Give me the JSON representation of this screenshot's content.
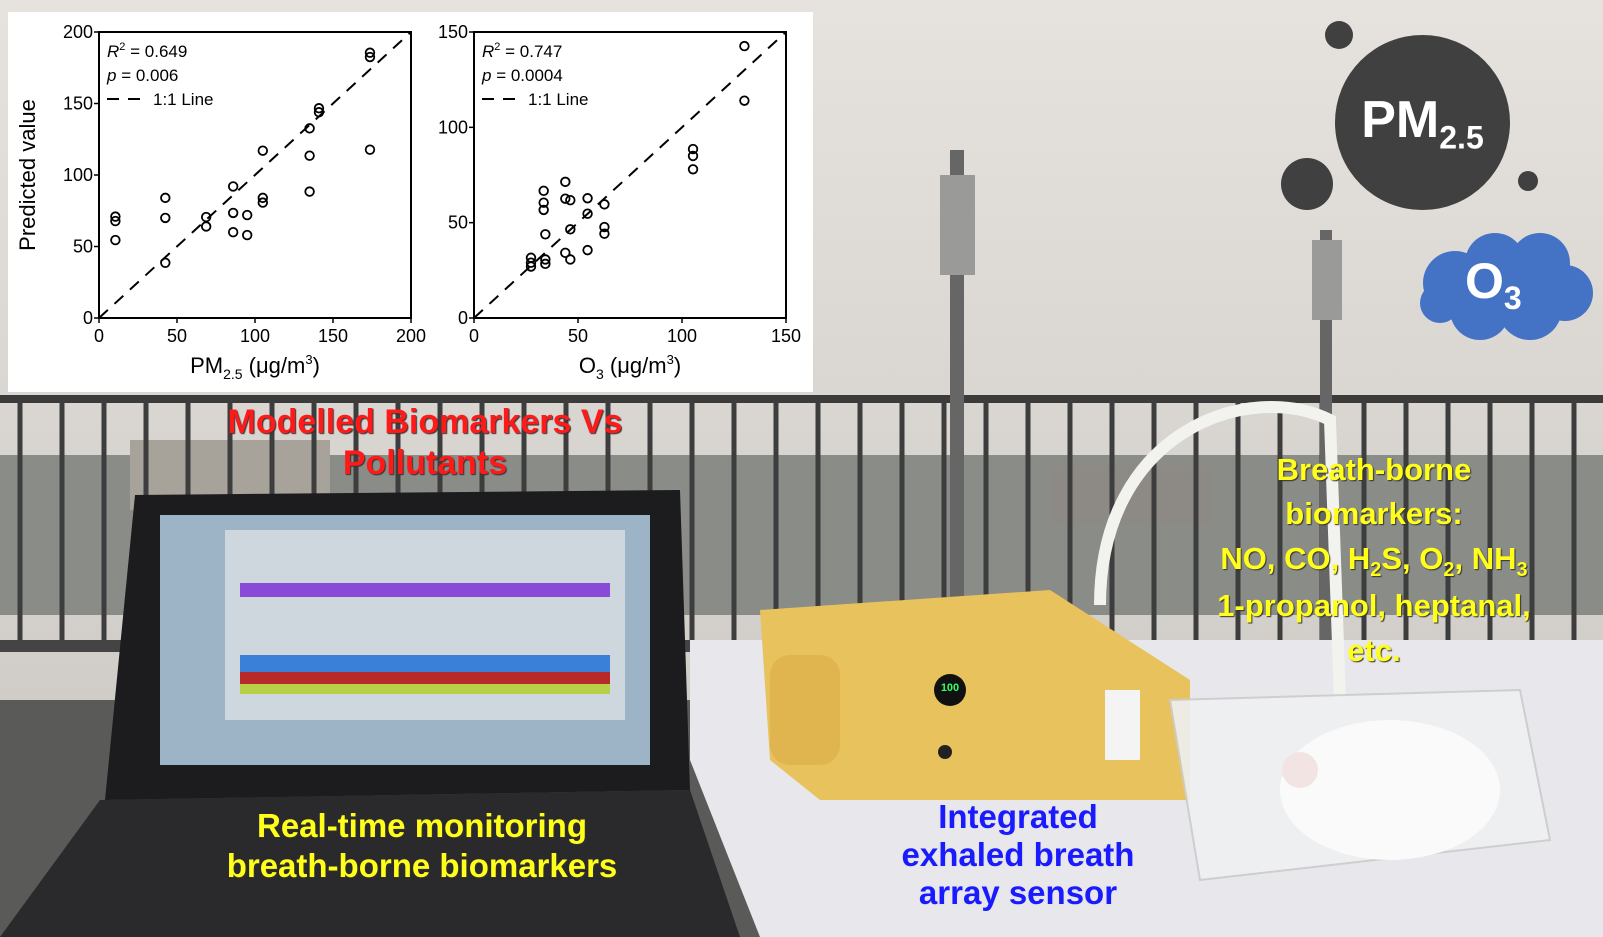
{
  "labels": {
    "modelled_line1": "Modelled Biomarkers Vs",
    "modelled_line2": "Pollutants",
    "breath_line1": "Breath-borne",
    "breath_line2": "biomarkers:",
    "breath_line3_parts": [
      "NO, CO, H",
      "2",
      "S, O",
      "2",
      ", NH",
      "3"
    ],
    "breath_line4": "1-propanol, heptanal,",
    "breath_line5": "etc.",
    "realtime_line1": "Real-time monitoring",
    "realtime_line2": "breath-borne biomarkers",
    "sensor_line1": "Integrated",
    "sensor_line2": "exhaled breath",
    "sensor_line3": "array sensor",
    "pm_main": "PM",
    "pm_sub": "2.5",
    "o3_main": "O",
    "o3_sub": "3",
    "device_display": "100"
  },
  "colors": {
    "modelled": "#ff1a1a",
    "breath": "#ffff1a",
    "sensor": "#1a1aff",
    "pm_bubble": "#404040",
    "o3_cloud": "#4472c4"
  },
  "chart_data": [
    {
      "type": "scatter",
      "ylabel": "Predicted value",
      "xlabel_main": "PM",
      "xlabel_sub": "2.5",
      "xlabel_unit": " (μg/m",
      "xlabel_sup": "3",
      "xlabel_end": ")",
      "xlim": [
        0,
        200
      ],
      "ylim": [
        0,
        200
      ],
      "xticks": [
        0,
        50,
        100,
        150,
        200
      ],
      "yticks": [
        0,
        50,
        100,
        150,
        200
      ],
      "annotations": {
        "r2_label": "R",
        "r2_sup": "2",
        "r2_value": " = 0.649",
        "p_label": "p",
        "p_value": " = 0.006",
        "legend": "1:1 Line"
      },
      "reference_line": "1:1 dashed",
      "points": [
        [
          10.5,
          70.9
        ],
        [
          10.5,
          67.8
        ],
        [
          10.5,
          54.5
        ],
        [
          42.5,
          84
        ],
        [
          42.5,
          70
        ],
        [
          42.5,
          38.6
        ],
        [
          68.7,
          70.6
        ],
        [
          68.7,
          64
        ],
        [
          86,
          92
        ],
        [
          86,
          73.5
        ],
        [
          86,
          60
        ],
        [
          95,
          72
        ],
        [
          95,
          58
        ],
        [
          105,
          117
        ],
        [
          105,
          84
        ],
        [
          105,
          80.7
        ],
        [
          135,
          132.6
        ],
        [
          135,
          113.5
        ],
        [
          135,
          88.4
        ],
        [
          141,
          146.7
        ],
        [
          141,
          143.9
        ],
        [
          173.7,
          185.5
        ],
        [
          173.7,
          182.5
        ],
        [
          173.7,
          117.7
        ]
      ]
    },
    {
      "type": "scatter",
      "ylabel": "",
      "xlabel_main": "O",
      "xlabel_sub": "3",
      "xlabel_unit": " (μg/m",
      "xlabel_sup": "3",
      "xlabel_end": ")",
      "xlim": [
        0,
        150
      ],
      "ylim": [
        0,
        150
      ],
      "xticks": [
        0,
        50,
        100,
        150
      ],
      "yticks": [
        0,
        50,
        100,
        150
      ],
      "annotations": {
        "r2_label": "R",
        "r2_sup": "2",
        "r2_value": " = 0.747",
        "p_label": "p",
        "p_value": " = 0.0004",
        "legend": "1:1 Line"
      },
      "reference_line": "1:1 dashed",
      "points": [
        [
          130,
          142.6
        ],
        [
          130,
          114
        ],
        [
          105.3,
          88.6
        ],
        [
          105.3,
          85
        ],
        [
          105.3,
          78
        ],
        [
          33.5,
          66.7
        ],
        [
          33.5,
          60.5
        ],
        [
          33.5,
          56.7
        ],
        [
          34.3,
          43.9
        ],
        [
          27.4,
          31.6
        ],
        [
          27.4,
          29
        ],
        [
          27.4,
          27
        ],
        [
          34.3,
          30.7
        ],
        [
          34.3,
          28.4
        ],
        [
          43.9,
          71.4
        ],
        [
          43.9,
          62.6
        ],
        [
          46.3,
          61.8
        ],
        [
          43.9,
          34.2
        ],
        [
          46.3,
          30.7
        ],
        [
          46.3,
          46.5
        ],
        [
          54.6,
          62.8
        ],
        [
          54.6,
          54.7
        ],
        [
          54.6,
          35.6
        ],
        [
          62.7,
          59.6
        ],
        [
          62.7,
          47.7
        ],
        [
          62.7,
          44.2
        ]
      ]
    }
  ]
}
